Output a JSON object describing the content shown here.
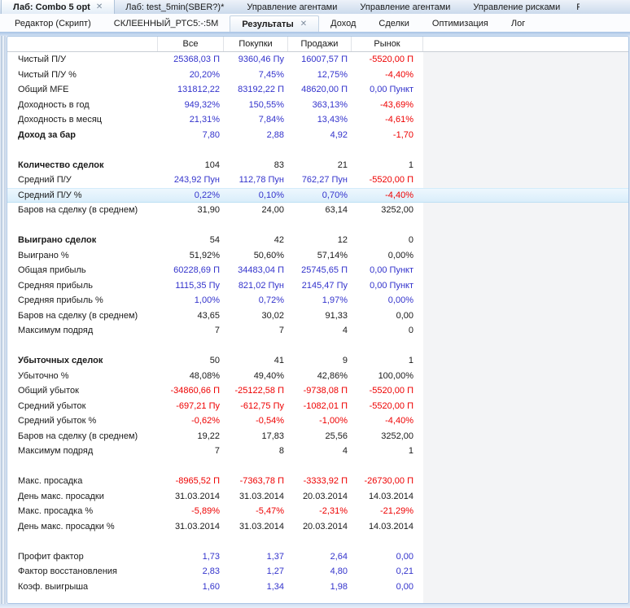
{
  "colors": {
    "blue": "#3333CC",
    "red": "#EE0000",
    "black": "#1A1A1A",
    "highlight": "#DCEFFA",
    "accent_line": "#A9C4E4"
  },
  "window_tabs": [
    {
      "label": "Лаб: Combo 5 opt",
      "active": true,
      "closable": true
    },
    {
      "label": "Лаб: test_5min(SBER?)*",
      "active": false
    },
    {
      "label": "Управление агентами",
      "active": false
    },
    {
      "label": "Управление агентами",
      "active": false
    },
    {
      "label": "Управление рисками",
      "active": false
    },
    {
      "label": "Р",
      "active": false,
      "partial": true
    }
  ],
  "doc_tabs": [
    {
      "label": "Редактор (Скрипт)"
    },
    {
      "label": "СКЛЕЕННЫЙ_РТС5:-:5М"
    },
    {
      "label": "Результаты",
      "active": true,
      "closable": true
    },
    {
      "label": "Доход"
    },
    {
      "label": "Сделки"
    },
    {
      "label": "Оптимизация"
    },
    {
      "label": "Лог"
    }
  ],
  "results_table": {
    "columns": [
      "Все",
      "Покупки",
      "Продажи",
      "Рынок"
    ],
    "rows": [
      {
        "label": "Чистый П/У",
        "values": [
          "25368,03 П",
          "9360,46 Пу",
          "16007,57 П",
          "-5520,00 П"
        ],
        "colors": [
          "b",
          "b",
          "b",
          "r"
        ]
      },
      {
        "label": "Чистый П/У %",
        "values": [
          "20,20%",
          "7,45%",
          "12,75%",
          "-4,40%"
        ],
        "colors": [
          "b",
          "b",
          "b",
          "r"
        ]
      },
      {
        "label": "Общий MFE",
        "values": [
          "131812,22",
          "83192,22 П",
          "48620,00 П",
          "0,00 Пункт"
        ],
        "colors": [
          "b",
          "b",
          "b",
          "b"
        ]
      },
      {
        "label": "Доходность в год",
        "values": [
          "949,32%",
          "150,55%",
          "363,13%",
          "-43,69%"
        ],
        "colors": [
          "b",
          "b",
          "b",
          "r"
        ]
      },
      {
        "label": "Доходность в месяц",
        "values": [
          "21,31%",
          "7,84%",
          "13,43%",
          "-4,61%"
        ],
        "colors": [
          "b",
          "b",
          "b",
          "r"
        ]
      },
      {
        "label": "Доход за бар",
        "bold": true,
        "values": [
          "7,80",
          "2,88",
          "4,92",
          "-1,70"
        ],
        "colors": [
          "b",
          "b",
          "b",
          "r"
        ]
      },
      {
        "blank": true
      },
      {
        "label": "Количество сделок",
        "bold": true,
        "values": [
          "104",
          "83",
          "21",
          "1"
        ],
        "colors": [
          "k",
          "k",
          "k",
          "k"
        ]
      },
      {
        "label": "Средний П/У",
        "values": [
          "243,92 Пун",
          "112,78 Пун",
          "762,27 Пун",
          "-5520,00 П"
        ],
        "colors": [
          "b",
          "b",
          "b",
          "r"
        ]
      },
      {
        "label": "Средний П/У %",
        "highlight": true,
        "values": [
          "0,22%",
          "0,10%",
          "0,70%",
          "-4,40%"
        ],
        "colors": [
          "b",
          "b",
          "b",
          "r"
        ]
      },
      {
        "label": "Баров на сделку (в среднем)",
        "values": [
          "31,90",
          "24,00",
          "63,14",
          "3252,00"
        ],
        "colors": [
          "k",
          "k",
          "k",
          "k"
        ]
      },
      {
        "blank": true
      },
      {
        "label": "Выиграно сделок",
        "bold": true,
        "values": [
          "54",
          "42",
          "12",
          "0"
        ],
        "colors": [
          "k",
          "k",
          "k",
          "k"
        ]
      },
      {
        "label": "Выиграно %",
        "values": [
          "51,92%",
          "50,60%",
          "57,14%",
          "0,00%"
        ],
        "colors": [
          "k",
          "k",
          "k",
          "k"
        ]
      },
      {
        "label": "Общая прибыль",
        "values": [
          "60228,69 П",
          "34483,04 П",
          "25745,65 П",
          "0,00 Пункт"
        ],
        "colors": [
          "b",
          "b",
          "b",
          "b"
        ]
      },
      {
        "label": "Средняя прибыль",
        "values": [
          "1115,35 Пу",
          "821,02 Пун",
          "2145,47 Пу",
          "0,00 Пункт"
        ],
        "colors": [
          "b",
          "b",
          "b",
          "b"
        ]
      },
      {
        "label": "Средняя прибыль %",
        "values": [
          "1,00%",
          "0,72%",
          "1,97%",
          "0,00%"
        ],
        "colors": [
          "b",
          "b",
          "b",
          "b"
        ]
      },
      {
        "label": "Баров на сделку (в среднем)",
        "values": [
          "43,65",
          "30,02",
          "91,33",
          "0,00"
        ],
        "colors": [
          "k",
          "k",
          "k",
          "k"
        ]
      },
      {
        "label": "Максимум подряд",
        "values": [
          "7",
          "7",
          "4",
          "0"
        ],
        "colors": [
          "k",
          "k",
          "k",
          "k"
        ]
      },
      {
        "blank": true
      },
      {
        "label": "Убыточных сделок",
        "bold": true,
        "values": [
          "50",
          "41",
          "9",
          "1"
        ],
        "colors": [
          "k",
          "k",
          "k",
          "k"
        ]
      },
      {
        "label": "Убыточно %",
        "values": [
          "48,08%",
          "49,40%",
          "42,86%",
          "100,00%"
        ],
        "colors": [
          "k",
          "k",
          "k",
          "k"
        ]
      },
      {
        "label": "Общий убыток",
        "values": [
          "-34860,66 П",
          "-25122,58 П",
          "-9738,08 П",
          "-5520,00 П"
        ],
        "colors": [
          "r",
          "r",
          "r",
          "r"
        ]
      },
      {
        "label": "Средний убыток",
        "values": [
          "-697,21 Пу",
          "-612,75 Пу",
          "-1082,01 П",
          "-5520,00 П"
        ],
        "colors": [
          "r",
          "r",
          "r",
          "r"
        ]
      },
      {
        "label": "Средний убыток %",
        "values": [
          "-0,62%",
          "-0,54%",
          "-1,00%",
          "-4,40%"
        ],
        "colors": [
          "r",
          "r",
          "r",
          "r"
        ]
      },
      {
        "label": "Баров на сделку (в среднем)",
        "values": [
          "19,22",
          "17,83",
          "25,56",
          "3252,00"
        ],
        "colors": [
          "k",
          "k",
          "k",
          "k"
        ]
      },
      {
        "label": "Максимум подряд",
        "values": [
          "7",
          "8",
          "4",
          "1"
        ],
        "colors": [
          "k",
          "k",
          "k",
          "k"
        ]
      },
      {
        "blank": true
      },
      {
        "label": "Макс. просадка",
        "values": [
          "-8965,52 П",
          "-7363,78 П",
          "-3333,92 П",
          "-26730,00 П"
        ],
        "colors": [
          "r",
          "r",
          "r",
          "r"
        ]
      },
      {
        "label": "День макс. просадки",
        "values": [
          "31.03.2014",
          "31.03.2014",
          "20.03.2014",
          "14.03.2014"
        ],
        "colors": [
          "k",
          "k",
          "k",
          "k"
        ]
      },
      {
        "label": "Макс. просадка %",
        "values": [
          "-5,89%",
          "-5,47%",
          "-2,31%",
          "-21,29%"
        ],
        "colors": [
          "r",
          "r",
          "r",
          "r"
        ]
      },
      {
        "label": "День макс. просадки %",
        "values": [
          "31.03.2014",
          "31.03.2014",
          "20.03.2014",
          "14.03.2014"
        ],
        "colors": [
          "k",
          "k",
          "k",
          "k"
        ]
      },
      {
        "blank": true
      },
      {
        "label": "Профит фактор",
        "values": [
          "1,73",
          "1,37",
          "2,64",
          "0,00"
        ],
        "colors": [
          "b",
          "b",
          "b",
          "b"
        ]
      },
      {
        "label": "Фактор восстановления",
        "values": [
          "2,83",
          "1,27",
          "4,80",
          "0,21"
        ],
        "colors": [
          "b",
          "b",
          "b",
          "b"
        ]
      },
      {
        "label": "Коэф. выигрыша",
        "values": [
          "1,60",
          "1,34",
          "1,98",
          "0,00"
        ],
        "colors": [
          "b",
          "b",
          "b",
          "b"
        ]
      }
    ]
  },
  "icons": {
    "close": "✕"
  }
}
